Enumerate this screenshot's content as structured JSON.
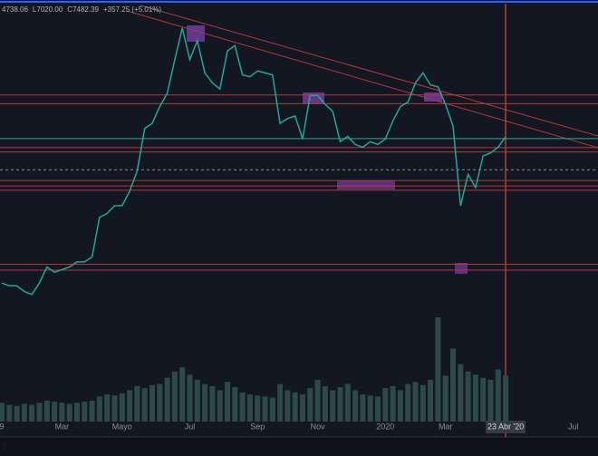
{
  "chart_data": {
    "type": "line",
    "header": [
      "4738.06",
      "L7020.00",
      "C7482.39",
      "+357.25 (+5.01%)"
    ],
    "categories": [
      "9",
      null,
      null,
      null,
      null,
      null,
      null,
      null,
      "Mar",
      null,
      null,
      null,
      null,
      null,
      null,
      null,
      "Mayo",
      null,
      null,
      null,
      null,
      null,
      null,
      null,
      null,
      "Jul",
      null,
      null,
      null,
      null,
      null,
      null,
      null,
      null,
      "Sep",
      null,
      null,
      null,
      null,
      null,
      null,
      null,
      "Nov",
      null,
      null,
      null,
      null,
      null,
      null,
      null,
      null,
      "2020",
      null,
      null,
      null,
      null,
      null,
      null,
      null,
      "Mar",
      null,
      null,
      null,
      null,
      null,
      null,
      null,
      "23 Abr '20",
      null,
      null,
      null,
      null,
      null,
      null,
      null,
      null,
      "Jul",
      null,
      null,
      null
    ],
    "series": [
      {
        "color": "#26a69a",
        "values": [
          3600,
          3550,
          3550,
          3450,
          3400,
          3600,
          3900,
          3800,
          3850,
          3900,
          4000,
          4000,
          4100,
          5000,
          5100,
          5300,
          5300,
          5700,
          6300,
          7800,
          8000,
          8700,
          9300,
          11000,
          12900,
          11000,
          12100,
          10300,
          9800,
          9500,
          11500,
          11800,
          10200,
          10100,
          10400,
          10300,
          10200,
          8000,
          8200,
          8300,
          7400,
          9200,
          9200,
          8800,
          8500,
          7300,
          7500,
          7200,
          7100,
          7300,
          7200,
          7400,
          8100,
          8700,
          8900,
          9800,
          10300,
          9700,
          9600,
          8800,
          7900,
          5300,
          6200,
          5800,
          6800,
          6900,
          7100,
          7482,
          null,
          null,
          null,
          null,
          null,
          null,
          null,
          null,
          null,
          null,
          null,
          null
        ]
      },
      {
        "color": "#2d4a48",
        "axis": "volume",
        "values": [
          18,
          16,
          15,
          17,
          16,
          18,
          20,
          19,
          18,
          17,
          18,
          19,
          20,
          24,
          26,
          25,
          27,
          30,
          34,
          32,
          35,
          36,
          42,
          48,
          52,
          45,
          40,
          36,
          34,
          30,
          38,
          33,
          28,
          26,
          25,
          24,
          23,
          36,
          30,
          28,
          26,
          32,
          40,
          34,
          30,
          33,
          36,
          30,
          26,
          25,
          24,
          32,
          34,
          30,
          36,
          38,
          35,
          40,
          100,
          44,
          70,
          55,
          48,
          45,
          42,
          40,
          50,
          44,
          null,
          null,
          null,
          null,
          null,
          null,
          null,
          null,
          null,
          null,
          null,
          null
        ]
      }
    ],
    "ylim": [
      1800,
      14500
    ],
    "log_scale": true,
    "volume_lim": [
      0,
      100
    ],
    "levels": [
      {
        "value": 9225,
        "color": "#b23a3a"
      },
      {
        "value": 8830,
        "color": "#b23a3a"
      },
      {
        "value": 7415,
        "color": "#3aa39a"
      },
      {
        "value": 7090,
        "color": "#b23a3a"
      },
      {
        "value": 6935,
        "color": "#b23a3a"
      },
      {
        "value": 6345,
        "color": "#8a8f99"
      },
      {
        "value": 6010,
        "color": "#b23a3a"
      },
      {
        "value": 5850,
        "color": "#b23a3a"
      },
      {
        "value": 5725,
        "color": "#b23a3a"
      },
      {
        "value": 3955,
        "color": "#b23a3a"
      },
      {
        "value": 3840,
        "color": "#b23a3a"
      }
    ]
  }
}
